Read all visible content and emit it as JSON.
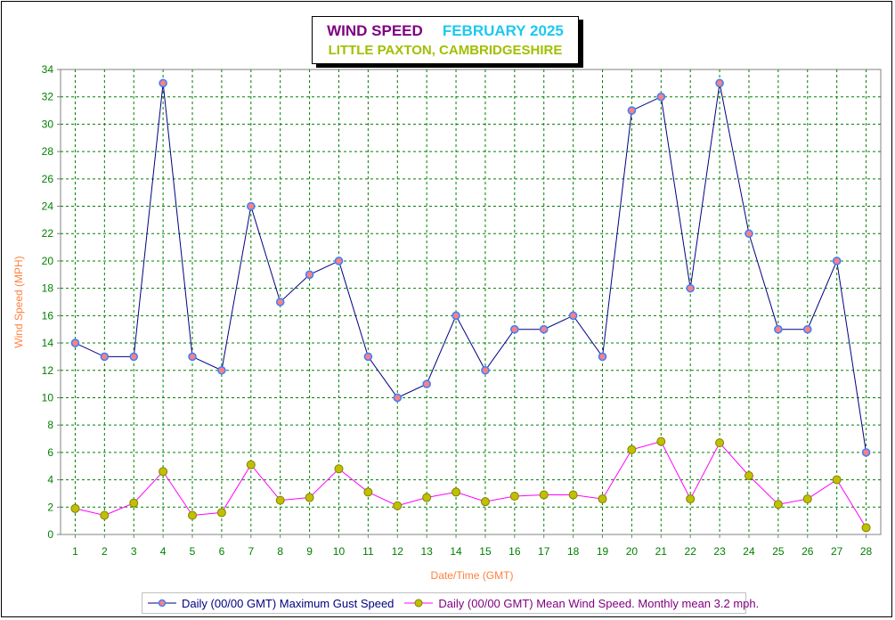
{
  "title": {
    "main": "WIND SPEED",
    "month": "FEBRUARY 2025",
    "location": "LITTLE PAXTON, CAMBRIDGESHIRE"
  },
  "colors": {
    "gust_line": "#000080",
    "gust_marker": "#ff8080",
    "gust_marker_edge": "#4080ff",
    "mean_line": "#ff00ff",
    "mean_marker": "#c0c000",
    "mean_marker_edge": "#808000",
    "grid": "#008000",
    "tick_labels": "#008000",
    "axis_title": "#ff8040"
  },
  "chart_data": {
    "type": "line",
    "title": "WIND SPEED FEBRUARY 2025 LITTLE PAXTON, CAMBRIDGESHIRE",
    "xlabel": "Date/Time (GMT)",
    "ylabel": "Wind Speed (MPH)",
    "ylim": [
      0,
      34
    ],
    "yticks": [
      0,
      2,
      4,
      6,
      8,
      10,
      12,
      14,
      16,
      18,
      20,
      22,
      24,
      26,
      28,
      30,
      32,
      34
    ],
    "x": [
      1,
      2,
      3,
      4,
      5,
      6,
      7,
      8,
      9,
      10,
      11,
      12,
      13,
      14,
      15,
      16,
      17,
      18,
      19,
      20,
      21,
      22,
      23,
      24,
      25,
      26,
      27,
      28
    ],
    "grid": true,
    "legend_position": "bottom",
    "series": [
      {
        "name": "Daily (00/00 GMT) Maximum Gust Speed",
        "values": [
          14,
          13,
          13,
          33,
          13,
          12,
          24,
          17,
          19,
          20,
          13,
          10,
          11,
          16,
          12,
          15,
          15,
          16,
          13,
          31,
          32,
          18,
          33,
          22,
          15,
          15,
          20,
          6
        ]
      },
      {
        "name": "Daily (00/00 GMT) Mean Wind Speed. Monthly mean 3.2 mph.",
        "values": [
          1.9,
          1.4,
          2.3,
          4.6,
          1.4,
          1.6,
          5.1,
          2.5,
          2.7,
          4.8,
          3.1,
          2.1,
          2.7,
          3.1,
          2.4,
          2.8,
          2.9,
          2.9,
          2.6,
          6.2,
          6.8,
          2.6,
          6.7,
          4.3,
          2.2,
          2.6,
          4.0,
          0.5
        ]
      }
    ]
  }
}
